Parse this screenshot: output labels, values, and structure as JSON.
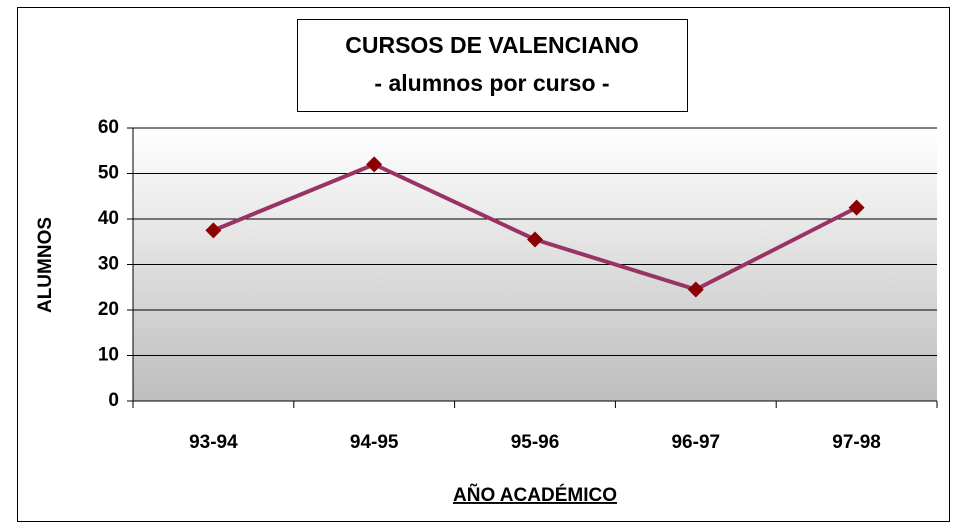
{
  "chart_data": {
    "type": "line",
    "title": "CURSOS DE VALENCIANO",
    "subtitle": "- alumnos por curso -",
    "x_label": "AÑO ACADÉMICO",
    "y_label": "ALUMNOS",
    "categories": [
      "93-94",
      "94-95",
      "95-96",
      "96-97",
      "97-98"
    ],
    "values": [
      37.5,
      52,
      35.5,
      24.5,
      42.5
    ],
    "color": "#993366",
    "marker_color": "#8b0000",
    "ylim": [
      0,
      60
    ],
    "yticks": [
      0,
      10,
      20,
      30,
      40,
      50,
      60
    ],
    "grid": true
  }
}
